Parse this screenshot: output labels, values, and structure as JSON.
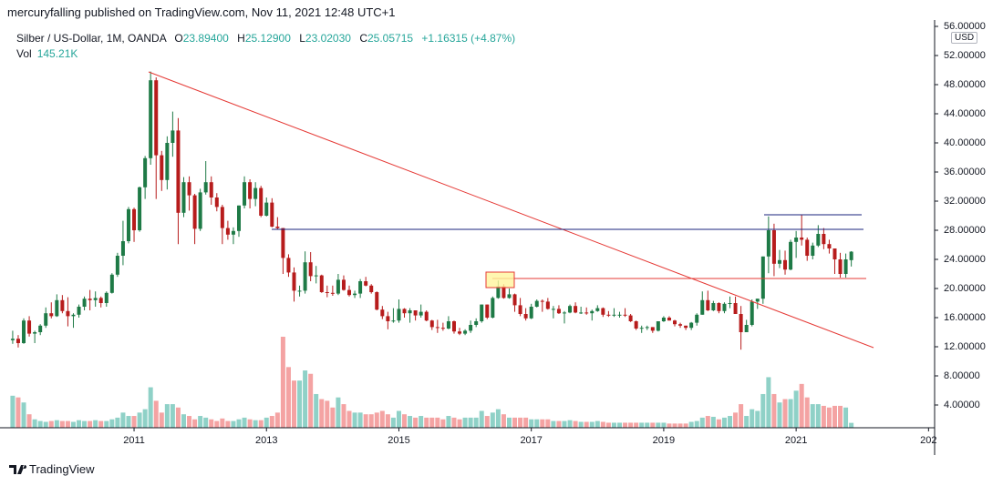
{
  "header": "mercuryfalling published on TradingView.com, Nov 11, 2021 12:48 UTC+1",
  "footer": "TradingView",
  "chart_data": {
    "type": "candlestick",
    "title": "Silber / US-Dollar, 1M, OANDA",
    "currency": "USD",
    "legend": {
      "open_label": "O",
      "open": "23.89400",
      "high_label": "H",
      "high": "25.12900",
      "low_label": "L",
      "low": "23.02030",
      "close_label": "C",
      "close": "25.05715",
      "change": "+1.16315 (+4.87%)",
      "volume_label": "Vol",
      "volume": "145.21K"
    },
    "up_color": "#1e7a46",
    "down_color": "#b71c1c",
    "volume_up_color": "#8fd1c7",
    "volume_down_color": "#f4a3a3",
    "grid": true,
    "xlim": [
      -2.3,
      167.1
    ],
    "xticks": [
      {
        "value": 22,
        "label": "2011"
      },
      {
        "value": 46,
        "label": "2013"
      },
      {
        "value": 70,
        "label": "2015"
      },
      {
        "value": 94,
        "label": "2017"
      },
      {
        "value": 118,
        "label": "2019"
      },
      {
        "value": 142,
        "label": "2021"
      },
      {
        "value": 166,
        "label": "202"
      }
    ],
    "ylim": [
      0.875,
      56.875
    ],
    "yticks": [
      {
        "value": 4,
        "label": "4.00000"
      },
      {
        "value": 8,
        "label": "8.00000"
      },
      {
        "value": 12,
        "label": "12.00000"
      },
      {
        "value": 16,
        "label": "16.00000"
      },
      {
        "value": 20,
        "label": "20.00000"
      },
      {
        "value": 24,
        "label": "24.00000"
      },
      {
        "value": 28,
        "label": "28.00000"
      },
      {
        "value": 32,
        "label": "32.00000"
      },
      {
        "value": 36,
        "label": "36.00000"
      },
      {
        "value": 40,
        "label": "40.00000"
      },
      {
        "value": 44,
        "label": "44.00000"
      },
      {
        "value": 48,
        "label": "48.00000"
      },
      {
        "value": 52,
        "label": "52.00000"
      },
      {
        "value": 56,
        "label": "56.00000"
      }
    ],
    "ohlc": [
      [
        12.9,
        14.2,
        12.4,
        13.1
      ],
      [
        13.1,
        13.6,
        11.9,
        12.5
      ],
      [
        12.5,
        15.9,
        12.4,
        15.6
      ],
      [
        15.6,
        16.2,
        13.4,
        13.8
      ],
      [
        13.8,
        14.2,
        12.5,
        14.0
      ],
      [
        14.0,
        15.1,
        13.6,
        14.9
      ],
      [
        14.9,
        17.4,
        14.6,
        16.6
      ],
      [
        16.6,
        18.1,
        15.9,
        16.2
      ],
      [
        16.2,
        19.2,
        16.1,
        18.4
      ],
      [
        18.4,
        19.1,
        16.6,
        16.9
      ],
      [
        16.9,
        18.8,
        14.8,
        16.2
      ],
      [
        16.2,
        16.6,
        14.6,
        16.4
      ],
      [
        16.4,
        17.8,
        16.0,
        17.5
      ],
      [
        17.5,
        18.9,
        17.0,
        18.6
      ],
      [
        18.6,
        19.8,
        17.0,
        18.4
      ],
      [
        18.4,
        19.6,
        17.5,
        18.7
      ],
      [
        18.7,
        18.9,
        17.4,
        18.0
      ],
      [
        18.0,
        19.6,
        17.5,
        19.4
      ],
      [
        19.4,
        22.1,
        19.3,
        21.9
      ],
      [
        21.9,
        24.9,
        21.6,
        24.5
      ],
      [
        24.5,
        29.3,
        23.2,
        26.5
      ],
      [
        26.5,
        31.2,
        26.2,
        30.9
      ],
      [
        30.9,
        31.1,
        26.4,
        28.0
      ],
      [
        28.0,
        34.0,
        27.8,
        33.9
      ],
      [
        33.9,
        38.2,
        32.3,
        37.9
      ],
      [
        37.9,
        49.8,
        37.0,
        48.6
      ],
      [
        48.6,
        49.0,
        32.3,
        38.3
      ],
      [
        38.3,
        38.9,
        33.4,
        34.9
      ],
      [
        34.9,
        40.9,
        33.6,
        40.0
      ],
      [
        40.0,
        44.3,
        38.1,
        41.7
      ],
      [
        41.7,
        43.4,
        26.1,
        30.4
      ],
      [
        30.4,
        35.3,
        29.8,
        34.6
      ],
      [
        34.6,
        35.4,
        30.7,
        32.8
      ],
      [
        32.8,
        33.0,
        26.1,
        28.2
      ],
      [
        28.2,
        33.7,
        27.9,
        33.2
      ],
      [
        33.2,
        37.5,
        32.9,
        34.6
      ],
      [
        34.6,
        35.4,
        31.5,
        32.5
      ],
      [
        32.5,
        33.1,
        30.6,
        31.2
      ],
      [
        31.2,
        31.5,
        26.1,
        28.3
      ],
      [
        28.3,
        29.3,
        26.7,
        27.4
      ],
      [
        27.4,
        28.4,
        26.1,
        27.9
      ],
      [
        27.9,
        31.4,
        27.1,
        31.4
      ],
      [
        31.4,
        35.4,
        31.0,
        34.6
      ],
      [
        34.6,
        35.0,
        31.0,
        32.3
      ],
      [
        32.3,
        34.6,
        31.3,
        33.8
      ],
      [
        33.8,
        34.1,
        29.8,
        30.0
      ],
      [
        30.0,
        32.5,
        29.9,
        31.8
      ],
      [
        31.8,
        32.4,
        28.4,
        28.5
      ],
      [
        28.5,
        29.8,
        28.1,
        28.3
      ],
      [
        28.3,
        28.3,
        22.0,
        24.2
      ],
      [
        24.2,
        24.7,
        21.6,
        22.2
      ],
      [
        22.2,
        22.9,
        18.2,
        19.7
      ],
      [
        19.7,
        20.4,
        18.9,
        19.7
      ],
      [
        19.7,
        25.1,
        19.3,
        23.6
      ],
      [
        23.6,
        25.0,
        21.0,
        21.7
      ],
      [
        21.7,
        23.1,
        20.7,
        21.8
      ],
      [
        21.8,
        21.9,
        19.4,
        19.5
      ],
      [
        19.5,
        20.4,
        18.8,
        19.4
      ],
      [
        19.4,
        20.4,
        19.0,
        19.3
      ],
      [
        19.3,
        22.0,
        19.1,
        21.2
      ],
      [
        21.2,
        21.8,
        19.7,
        19.8
      ],
      [
        19.8,
        20.4,
        18.9,
        19.1
      ],
      [
        19.1,
        19.7,
        18.7,
        19.3
      ],
      [
        19.3,
        21.3,
        18.7,
        21.0
      ],
      [
        21.0,
        21.6,
        20.3,
        20.4
      ],
      [
        20.4,
        20.6,
        19.3,
        19.5
      ],
      [
        19.5,
        19.6,
        17.0,
        17.1
      ],
      [
        17.1,
        17.6,
        15.8,
        16.2
      ],
      [
        16.2,
        16.8,
        14.4,
        15.5
      ],
      [
        15.5,
        17.3,
        15.3,
        15.6
      ],
      [
        15.6,
        18.5,
        15.3,
        17.2
      ],
      [
        17.2,
        17.3,
        16.0,
        16.6
      ],
      [
        16.6,
        17.3,
        15.3,
        17.0
      ],
      [
        17.0,
        17.0,
        15.6,
        16.3
      ],
      [
        16.3,
        17.8,
        16.0,
        16.8
      ],
      [
        16.8,
        17.0,
        15.5,
        15.6
      ],
      [
        15.6,
        15.7,
        14.3,
        14.7
      ],
      [
        14.7,
        15.7,
        13.9,
        14.6
      ],
      [
        14.6,
        15.3,
        14.2,
        14.5
      ],
      [
        14.5,
        16.2,
        14.4,
        15.5
      ],
      [
        15.5,
        15.6,
        13.8,
        14.1
      ],
      [
        14.1,
        14.6,
        13.6,
        13.8
      ],
      [
        13.8,
        14.4,
        13.6,
        14.2
      ],
      [
        14.2,
        15.6,
        13.9,
        15.0
      ],
      [
        15.0,
        15.9,
        14.7,
        15.5
      ],
      [
        15.5,
        17.8,
        15.3,
        17.8
      ],
      [
        17.8,
        17.8,
        15.8,
        16.0
      ],
      [
        16.0,
        18.9,
        15.9,
        18.7
      ],
      [
        18.7,
        21.1,
        18.6,
        20.3
      ],
      [
        20.3,
        20.6,
        18.6,
        18.7
      ],
      [
        18.7,
        20.0,
        18.6,
        19.2
      ],
      [
        19.2,
        19.3,
        16.8,
        17.7
      ],
      [
        17.7,
        18.7,
        16.2,
        16.5
      ],
      [
        16.5,
        17.3,
        15.6,
        15.9
      ],
      [
        15.9,
        17.9,
        15.8,
        17.5
      ],
      [
        17.5,
        18.5,
        17.4,
        18.3
      ],
      [
        18.3,
        18.5,
        16.8,
        18.2
      ],
      [
        18.2,
        18.7,
        17.1,
        17.2
      ],
      [
        17.2,
        17.6,
        15.9,
        17.2
      ],
      [
        17.2,
        17.7,
        16.5,
        16.6
      ],
      [
        16.6,
        16.9,
        15.2,
        16.7
      ],
      [
        16.7,
        17.8,
        16.6,
        17.6
      ],
      [
        17.6,
        18.1,
        16.6,
        16.7
      ],
      [
        16.7,
        17.5,
        16.5,
        16.7
      ],
      [
        16.7,
        17.4,
        16.4,
        16.6
      ],
      [
        16.6,
        17.1,
        15.6,
        16.9
      ],
      [
        16.9,
        17.7,
        16.8,
        17.3
      ],
      [
        17.3,
        17.4,
        16.1,
        16.4
      ],
      [
        16.4,
        16.9,
        16.1,
        16.3
      ],
      [
        16.3,
        17.3,
        16.1,
        16.4
      ],
      [
        16.4,
        16.8,
        16.0,
        16.4
      ],
      [
        16.4,
        17.3,
        16.1,
        16.3
      ],
      [
        16.3,
        16.5,
        15.4,
        15.5
      ],
      [
        15.5,
        15.6,
        14.3,
        14.5
      ],
      [
        14.5,
        14.9,
        13.9,
        14.6
      ],
      [
        14.6,
        14.9,
        14.3,
        14.7
      ],
      [
        14.7,
        14.7,
        13.9,
        14.2
      ],
      [
        14.2,
        15.5,
        14.1,
        15.5
      ],
      [
        15.5,
        16.2,
        15.4,
        16.0
      ],
      [
        16.0,
        16.2,
        15.6,
        15.6
      ],
      [
        15.6,
        15.7,
        14.8,
        15.1
      ],
      [
        15.1,
        15.3,
        14.6,
        14.9
      ],
      [
        14.9,
        14.9,
        14.3,
        14.6
      ],
      [
        14.6,
        15.4,
        14.3,
        15.3
      ],
      [
        15.3,
        16.6,
        14.9,
        16.4
      ],
      [
        16.4,
        19.6,
        16.4,
        18.4
      ],
      [
        18.4,
        19.7,
        16.9,
        17.0
      ],
      [
        17.0,
        18.3,
        16.9,
        18.0
      ],
      [
        18.0,
        18.1,
        16.6,
        16.9
      ],
      [
        16.9,
        18.1,
        16.6,
        17.9
      ],
      [
        17.9,
        18.9,
        17.3,
        18.0
      ],
      [
        18.0,
        18.9,
        16.5,
        16.5
      ],
      [
        16.5,
        17.6,
        11.6,
        14.0
      ],
      [
        14.0,
        15.7,
        14.0,
        15.0
      ],
      [
        15.0,
        18.5,
        14.8,
        18.2
      ],
      [
        18.2,
        18.6,
        17.2,
        18.6
      ],
      [
        18.6,
        24.4,
        17.9,
        24.4
      ],
      [
        24.4,
        29.9,
        22.1,
        28.0
      ],
      [
        28.0,
        28.9,
        21.7,
        23.4
      ],
      [
        23.4,
        25.3,
        22.8,
        23.9
      ],
      [
        23.9,
        25.2,
        21.9,
        22.6
      ],
      [
        22.6,
        26.7,
        22.5,
        26.4
      ],
      [
        26.4,
        27.9,
        24.2,
        27.0
      ],
      [
        27.0,
        30.1,
        25.9,
        26.7
      ],
      [
        26.7,
        27.0,
        23.8,
        24.5
      ],
      [
        24.5,
        26.3,
        24.0,
        25.9
      ],
      [
        25.9,
        28.7,
        25.7,
        27.5
      ],
      [
        27.5,
        28.3,
        25.4,
        26.1
      ],
      [
        26.1,
        26.7,
        24.8,
        25.5
      ],
      [
        25.5,
        25.5,
        22.0,
        24.0
      ],
      [
        24.0,
        24.9,
        21.5,
        22.0
      ],
      [
        22.0,
        24.8,
        21.5,
        24.0
      ],
      [
        23.894,
        25.129,
        23.0203,
        25.05715
      ]
    ],
    "volume": [
      950,
      900,
      750,
      400,
      250,
      200,
      175,
      200,
      225,
      200,
      200,
      175,
      225,
      200,
      200,
      225,
      200,
      200,
      250,
      300,
      450,
      350,
      350,
      450,
      550,
      1200,
      800,
      450,
      700,
      700,
      600,
      400,
      350,
      250,
      350,
      300,
      250,
      200,
      275,
      200,
      200,
      250,
      300,
      250,
      225,
      225,
      300,
      350,
      450,
      2700,
      1800,
      1400,
      1400,
      1700,
      1600,
      1000,
      850,
      800,
      600,
      900,
      700,
      500,
      450,
      450,
      400,
      400,
      450,
      500,
      400,
      300,
      500,
      400,
      350,
      300,
      350,
      300,
      300,
      300,
      250,
      350,
      300,
      250,
      300,
      300,
      300,
      500,
      350,
      450,
      550,
      400,
      300,
      300,
      300,
      300,
      250,
      250,
      250,
      250,
      200,
      200,
      200,
      225,
      200,
      175,
      175,
      175,
      200,
      175,
      150,
      150,
      150,
      150,
      150,
      150,
      150,
      150,
      150,
      150,
      150,
      125,
      125,
      125,
      125,
      175,
      200,
      300,
      350,
      325,
      250,
      300,
      350,
      450,
      700,
      350,
      550,
      500,
      1000,
      1500,
      1000,
      750,
      850,
      850,
      1100,
      1300,
      900,
      700,
      700,
      650,
      600,
      650,
      650,
      600,
      145.21
    ]
  }
}
